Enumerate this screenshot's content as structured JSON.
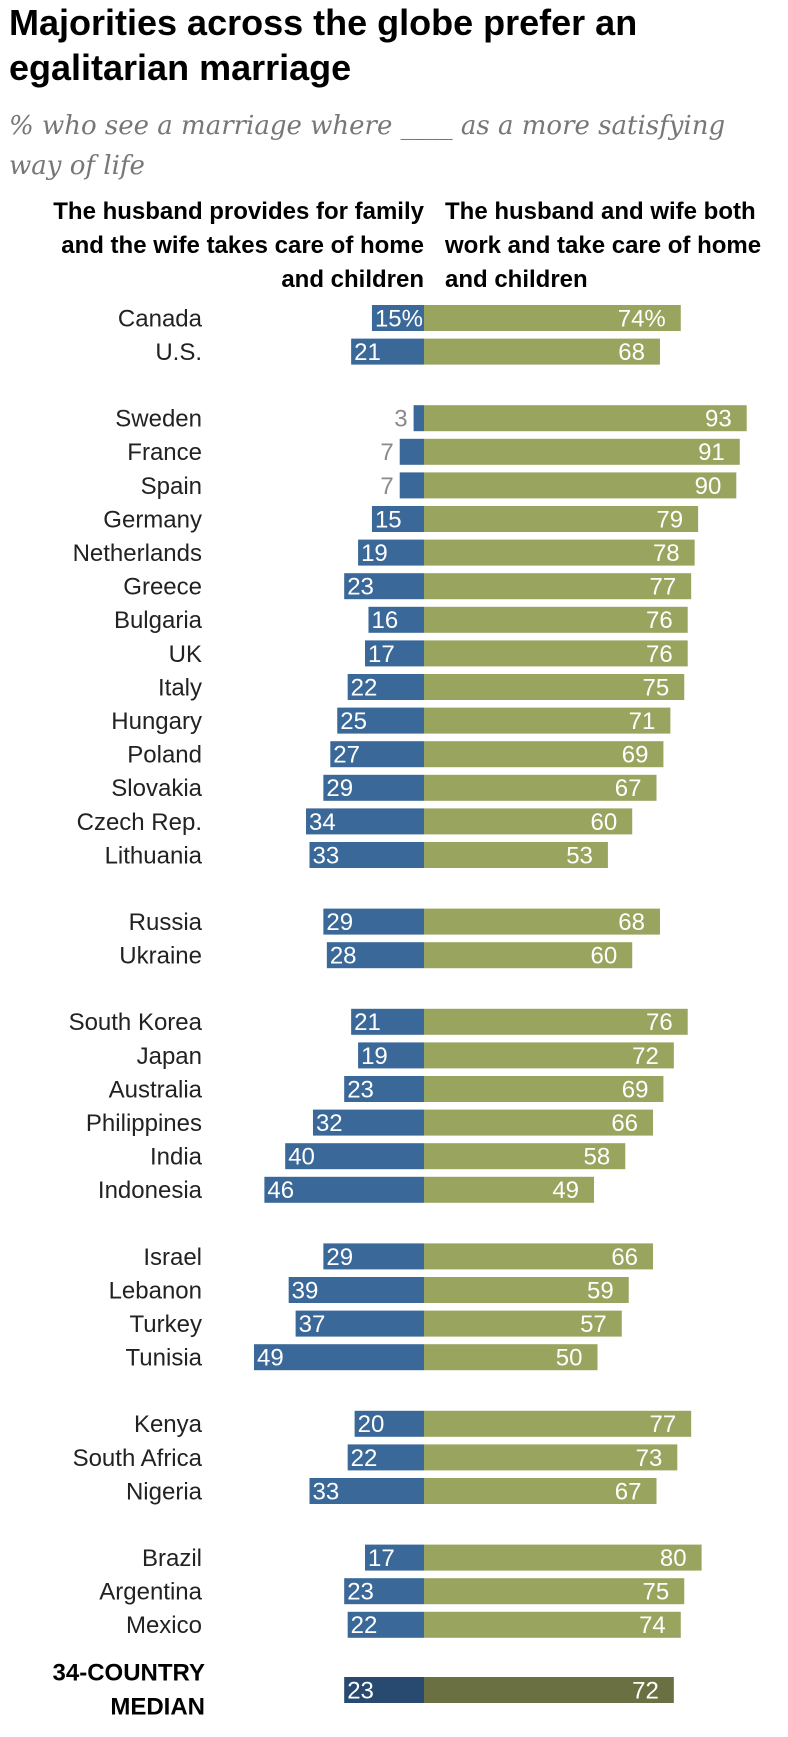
{
  "chart_data": {
    "type": "bar",
    "title": "Majorities across the globe prefer an egalitarian marriage",
    "subtitle": "% who see a marriage where ____ as a more satisfying way of life",
    "series": [
      {
        "name": "The husband provides for family and the wife takes care of home and children"
      },
      {
        "name": "The husband and wife both work and take care of home and children"
      }
    ],
    "colors": {
      "traditional": "#3a6898",
      "egalitarian": "#99a45e",
      "traditional_median": "#284a70",
      "egalitarian_median": "#6a7042"
    },
    "groups": [
      [
        {
          "country": "Canada",
          "traditional": 15,
          "egalitarian": 74,
          "traditional_label": "15%",
          "egalitarian_label": "74%"
        },
        {
          "country": "U.S.",
          "traditional": 21,
          "egalitarian": 68,
          "traditional_label": "21",
          "egalitarian_label": "68"
        }
      ],
      [
        {
          "country": "Sweden",
          "traditional": 3,
          "egalitarian": 93,
          "traditional_label": "3",
          "egalitarian_label": "93"
        },
        {
          "country": "France",
          "traditional": 7,
          "egalitarian": 91,
          "traditional_label": "7",
          "egalitarian_label": "91"
        },
        {
          "country": "Spain",
          "traditional": 7,
          "egalitarian": 90,
          "traditional_label": "7",
          "egalitarian_label": "90"
        },
        {
          "country": "Germany",
          "traditional": 15,
          "egalitarian": 79,
          "traditional_label": "15",
          "egalitarian_label": "79"
        },
        {
          "country": "Netherlands",
          "traditional": 19,
          "egalitarian": 78,
          "traditional_label": "19",
          "egalitarian_label": "78"
        },
        {
          "country": "Greece",
          "traditional": 23,
          "egalitarian": 77,
          "traditional_label": "23",
          "egalitarian_label": "77"
        },
        {
          "country": "Bulgaria",
          "traditional": 16,
          "egalitarian": 76,
          "traditional_label": "16",
          "egalitarian_label": "76"
        },
        {
          "country": "UK",
          "traditional": 17,
          "egalitarian": 76,
          "traditional_label": "17",
          "egalitarian_label": "76"
        },
        {
          "country": "Italy",
          "traditional": 22,
          "egalitarian": 75,
          "traditional_label": "22",
          "egalitarian_label": "75"
        },
        {
          "country": "Hungary",
          "traditional": 25,
          "egalitarian": 71,
          "traditional_label": "25",
          "egalitarian_label": "71"
        },
        {
          "country": "Poland",
          "traditional": 27,
          "egalitarian": 69,
          "traditional_label": "27",
          "egalitarian_label": "69"
        },
        {
          "country": "Slovakia",
          "traditional": 29,
          "egalitarian": 67,
          "traditional_label": "29",
          "egalitarian_label": "67"
        },
        {
          "country": "Czech Rep.",
          "traditional": 34,
          "egalitarian": 60,
          "traditional_label": "34",
          "egalitarian_label": "60"
        },
        {
          "country": "Lithuania",
          "traditional": 33,
          "egalitarian": 53,
          "traditional_label": "33",
          "egalitarian_label": "53"
        }
      ],
      [
        {
          "country": "Russia",
          "traditional": 29,
          "egalitarian": 68,
          "traditional_label": "29",
          "egalitarian_label": "68"
        },
        {
          "country": "Ukraine",
          "traditional": 28,
          "egalitarian": 60,
          "traditional_label": "28",
          "egalitarian_label": "60"
        }
      ],
      [
        {
          "country": "South Korea",
          "traditional": 21,
          "egalitarian": 76,
          "traditional_label": "21",
          "egalitarian_label": "76"
        },
        {
          "country": "Japan",
          "traditional": 19,
          "egalitarian": 72,
          "traditional_label": "19",
          "egalitarian_label": "72"
        },
        {
          "country": "Australia",
          "traditional": 23,
          "egalitarian": 69,
          "traditional_label": "23",
          "egalitarian_label": "69"
        },
        {
          "country": "Philippines",
          "traditional": 32,
          "egalitarian": 66,
          "traditional_label": "32",
          "egalitarian_label": "66"
        },
        {
          "country": "India",
          "traditional": 40,
          "egalitarian": 58,
          "traditional_label": "40",
          "egalitarian_label": "58"
        },
        {
          "country": "Indonesia",
          "traditional": 46,
          "egalitarian": 49,
          "traditional_label": "46",
          "egalitarian_label": "49"
        }
      ],
      [
        {
          "country": "Israel",
          "traditional": 29,
          "egalitarian": 66,
          "traditional_label": "29",
          "egalitarian_label": "66"
        },
        {
          "country": "Lebanon",
          "traditional": 39,
          "egalitarian": 59,
          "traditional_label": "39",
          "egalitarian_label": "59"
        },
        {
          "country": "Turkey",
          "traditional": 37,
          "egalitarian": 57,
          "traditional_label": "37",
          "egalitarian_label": "57"
        },
        {
          "country": "Tunisia",
          "traditional": 49,
          "egalitarian": 50,
          "traditional_label": "49",
          "egalitarian_label": "50"
        }
      ],
      [
        {
          "country": "Kenya",
          "traditional": 20,
          "egalitarian": 77,
          "traditional_label": "20",
          "egalitarian_label": "77"
        },
        {
          "country": "South Africa",
          "traditional": 22,
          "egalitarian": 73,
          "traditional_label": "22",
          "egalitarian_label": "73"
        },
        {
          "country": "Nigeria",
          "traditional": 33,
          "egalitarian": 67,
          "traditional_label": "33",
          "egalitarian_label": "67"
        }
      ],
      [
        {
          "country": "Brazil",
          "traditional": 17,
          "egalitarian": 80,
          "traditional_label": "17",
          "egalitarian_label": "80"
        },
        {
          "country": "Argentina",
          "traditional": 23,
          "egalitarian": 75,
          "traditional_label": "23",
          "egalitarian_label": "75"
        },
        {
          "country": "Mexico",
          "traditional": 22,
          "egalitarian": 74,
          "traditional_label": "22",
          "egalitarian_label": "74"
        }
      ]
    ],
    "median": {
      "label_lines": [
        "34-COUNTRY",
        "MEDIAN"
      ],
      "traditional": 23,
      "egalitarian": 72,
      "traditional_label": "23",
      "egalitarian_label": "72"
    }
  }
}
